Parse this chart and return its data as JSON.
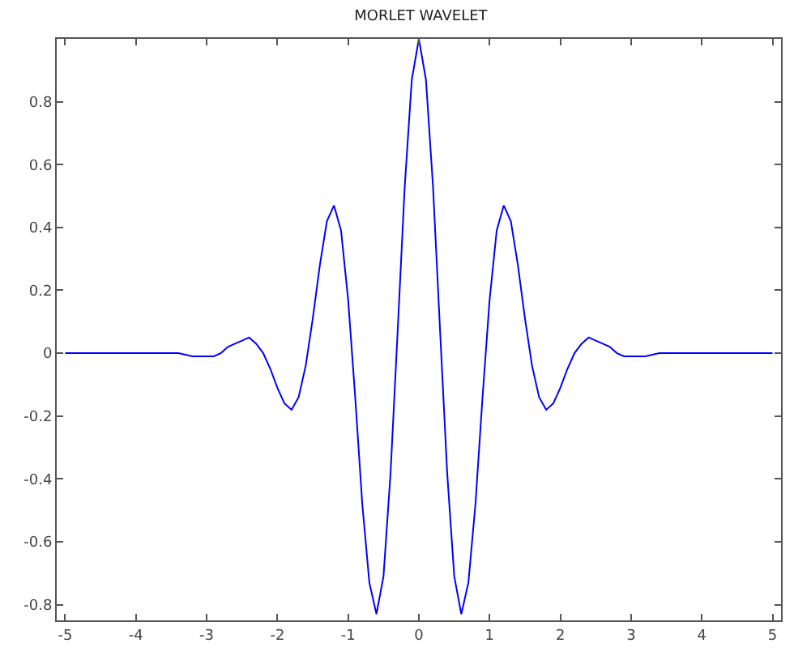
{
  "chart_data": {
    "type": "line",
    "title": "MORLET WAVELET",
    "x": [
      -5,
      -4,
      -3.4,
      -3.2,
      -3.0,
      -2.9,
      -2.8,
      -2.7,
      -2.6,
      -2.5,
      -2.4,
      -2.3,
      -2.2,
      -2.1,
      -2.0,
      -1.9,
      -1.8,
      -1.7,
      -1.6,
      -1.5,
      -1.4,
      -1.3,
      -1.2,
      -1.1,
      -1.0,
      -0.9,
      -0.8,
      -0.7,
      -0.6,
      -0.5,
      -0.4,
      -0.3,
      -0.2,
      -0.1,
      0,
      0.1,
      0.2,
      0.3,
      0.4,
      0.5,
      0.6,
      0.7,
      0.8,
      0.9,
      1.0,
      1.1,
      1.2,
      1.3,
      1.4,
      1.5,
      1.6,
      1.7,
      1.8,
      1.9,
      2.0,
      2.1,
      2.2,
      2.3,
      2.4,
      2.5,
      2.6,
      2.7,
      2.8,
      2.9,
      3.0,
      3.2,
      3.4,
      4,
      5
    ],
    "series": [
      {
        "color": "#0000ff",
        "values": [
          0,
          0,
          0,
          -0.01,
          -0.01,
          -0.01,
          0,
          0.02,
          0.03,
          0.04,
          0.05,
          0.03,
          0,
          -0.05,
          -0.11,
          -0.16,
          -0.18,
          -0.14,
          -0.04,
          0.11,
          0.28,
          0.42,
          0.47,
          0.39,
          0.17,
          -0.14,
          -0.48,
          -0.73,
          -0.83,
          -0.71,
          -0.38,
          0.07,
          0.53,
          0.87,
          1.0,
          0.87,
          0.53,
          0.07,
          -0.38,
          -0.71,
          -0.83,
          -0.73,
          -0.48,
          -0.14,
          0.17,
          0.39,
          0.47,
          0.42,
          0.28,
          0.11,
          -0.04,
          -0.14,
          -0.18,
          -0.16,
          -0.11,
          -0.05,
          0,
          0.03,
          0.05,
          0.04,
          0.03,
          0.02,
          0,
          -0.01,
          -0.01,
          -0.01,
          0,
          0,
          0
        ]
      }
    ],
    "xlim": [
      -5.12,
      5.12
    ],
    "xticks": [
      -5,
      -4,
      -3,
      -2,
      -1,
      0,
      1,
      2,
      3,
      4,
      5
    ],
    "ylim": [
      -0.85,
      1.0
    ],
    "yticks": [
      -0.8,
      -0.6,
      -0.4,
      -0.2,
      0,
      0.2,
      0.4,
      0.6,
      0.8
    ],
    "legend": false
  }
}
